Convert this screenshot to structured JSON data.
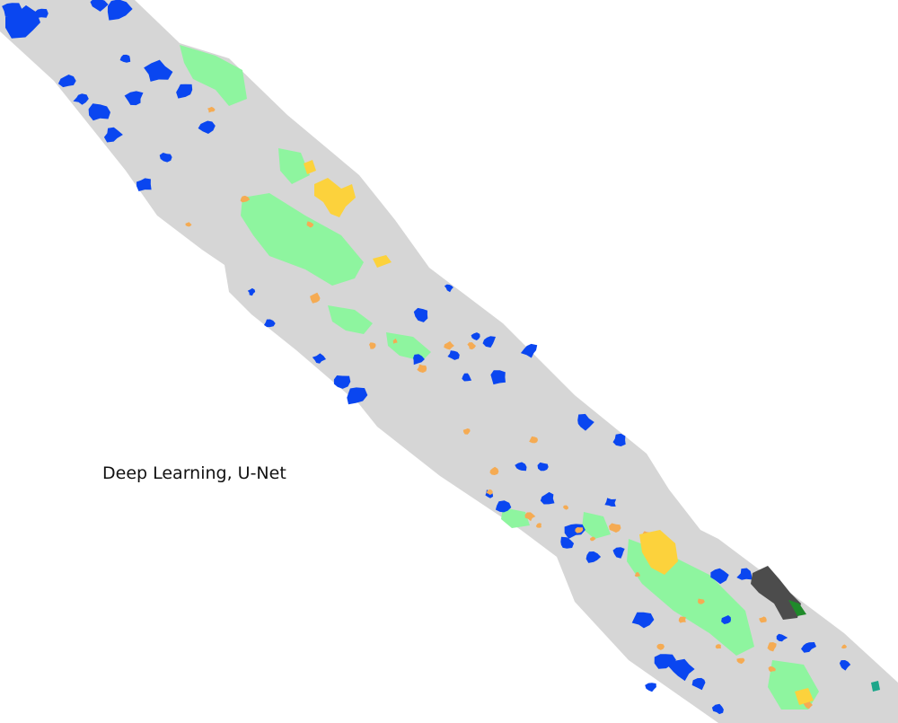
{
  "map": {
    "caption": "Deep Learning, U-Net",
    "colors": {
      "background": "#ffffff",
      "strip": "#d6d6d6",
      "water": "#0a46f0",
      "vegetation": "#8ef59f",
      "orange": "#f5ab53",
      "yellow": "#fcd23c",
      "dark_gray": "#4c4c4c",
      "dark_green": "#1f8a2a",
      "teal": "#1ca68a"
    }
  }
}
